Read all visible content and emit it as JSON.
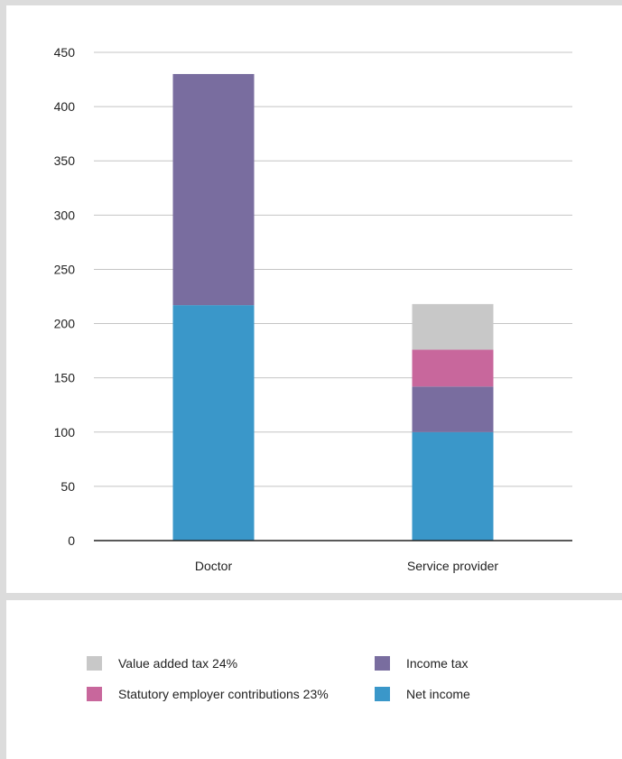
{
  "chart_data": {
    "type": "bar",
    "stacked": true,
    "categories": [
      "Doctor",
      "Service provider"
    ],
    "yticks": [
      0,
      50,
      100,
      150,
      200,
      250,
      300,
      350,
      400,
      450
    ],
    "ylim": [
      0,
      450
    ],
    "grid": true,
    "series": [
      {
        "name": "Net income",
        "color": "#3a97c9",
        "values": [
          217,
          100
        ]
      },
      {
        "name": "Income tax",
        "color": "#796d9f",
        "values": [
          213,
          42
        ]
      },
      {
        "name": "Statutory employer contributions 23%",
        "color": "#c8679c",
        "values": [
          0,
          34
        ]
      },
      {
        "name": "Value added tax 24%",
        "color": "#c8c8c8",
        "values": [
          0,
          42
        ]
      }
    ]
  },
  "legend": {
    "placement": "bottom",
    "items": [
      {
        "label": "Value added tax 24%",
        "color": "#c8c8c8"
      },
      {
        "label": "Income tax",
        "color": "#796d9f"
      },
      {
        "label": "Statutory employer contributions 23%",
        "color": "#c8679c"
      },
      {
        "label": "Net income",
        "color": "#3a97c9"
      }
    ]
  }
}
